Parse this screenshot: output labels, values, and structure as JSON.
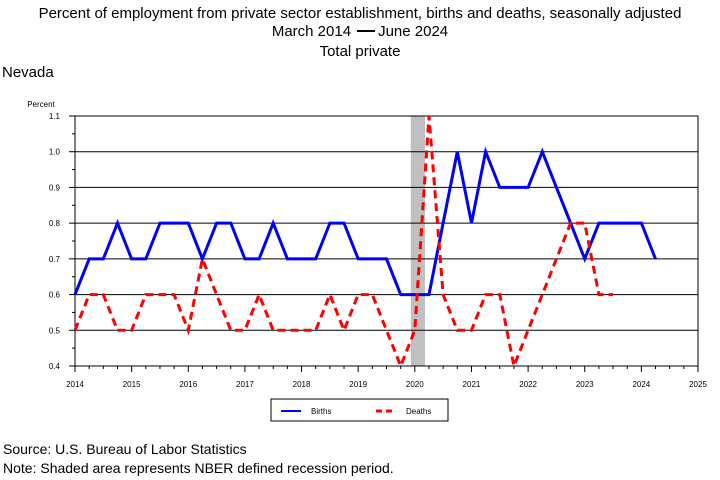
{
  "header": {
    "title": "Percent of employment from private sector establishment, births and deaths, seasonally adjusted",
    "range_start": "March 2014",
    "range_end": "June 2024",
    "subtitle": "Total private",
    "region": "Nevada"
  },
  "footer": {
    "source": "Source: U.S. Bureau of Labor Statistics",
    "note": "Note: Shaded area represents NBER defined recession period."
  },
  "chart_data": {
    "type": "line",
    "ylabel": "Percent",
    "xlabel": "",
    "xlim": [
      2014,
      2025
    ],
    "ylim": [
      0.4,
      1.1
    ],
    "x_ticks": [
      "2014",
      "2015",
      "2016",
      "2017",
      "2018",
      "2019",
      "2020",
      "2021",
      "2022",
      "2023",
      "2024",
      "2025"
    ],
    "y_ticks": [
      "0.4",
      "0.5",
      "0.6",
      "0.7",
      "0.8",
      "0.9",
      "1.0",
      "1.1"
    ],
    "grid": true,
    "legend_position": "bottom",
    "recession": {
      "start": 2020.0,
      "end": 2020.25,
      "color": "#c0c0c0"
    },
    "x": [
      2014.0,
      2014.25,
      2014.5,
      2014.75,
      2015.0,
      2015.25,
      2015.5,
      2015.75,
      2016.0,
      2016.25,
      2016.5,
      2016.75,
      2017.0,
      2017.25,
      2017.5,
      2017.75,
      2018.0,
      2018.25,
      2018.5,
      2018.75,
      2019.0,
      2019.25,
      2019.5,
      2019.75,
      2020.0,
      2020.25,
      2020.5,
      2020.75,
      2021.0,
      2021.25,
      2021.5,
      2021.75,
      2022.0,
      2022.25,
      2022.5,
      2022.75,
      2023.0,
      2023.25,
      2023.5,
      2023.75,
      2024.0,
      2024.25
    ],
    "series": [
      {
        "name": "Births",
        "color": "#0000ff",
        "style": "solid",
        "values": [
          0.6,
          0.7,
          0.7,
          0.8,
          0.7,
          0.7,
          0.8,
          0.8,
          0.8,
          0.7,
          0.8,
          0.8,
          0.7,
          0.7,
          0.8,
          0.7,
          0.7,
          0.7,
          0.8,
          0.8,
          0.7,
          0.7,
          0.7,
          0.6,
          0.6,
          0.6,
          0.8,
          1.0,
          0.8,
          1.0,
          0.9,
          0.9,
          0.9,
          1.0,
          0.9,
          0.8,
          0.7,
          0.8,
          0.8,
          0.8,
          0.8,
          0.7
        ]
      },
      {
        "name": "Deaths",
        "color": "#ff0000",
        "style": "dashed",
        "values": [
          0.5,
          0.6,
          0.6,
          0.5,
          0.5,
          0.6,
          0.6,
          0.6,
          0.5,
          0.7,
          0.6,
          0.5,
          0.5,
          0.6,
          0.5,
          0.5,
          0.5,
          0.5,
          0.6,
          0.5,
          0.6,
          0.6,
          0.5,
          0.4,
          0.5,
          1.1,
          0.6,
          0.5,
          0.5,
          0.6,
          0.6,
          0.4,
          0.5,
          0.6,
          0.7,
          0.8,
          0.8,
          0.6,
          0.6,
          null,
          null,
          null
        ]
      }
    ]
  }
}
